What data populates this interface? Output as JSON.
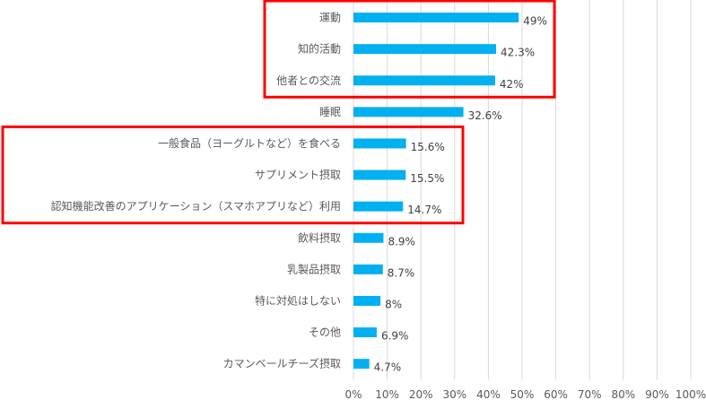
{
  "chart_data": {
    "type": "bar",
    "orientation": "horizontal",
    "categories": [
      "運動",
      "知的活動",
      "他者との交流",
      "睡眠",
      "一般食品（ヨーグルトなど）を食べる",
      "サプリメント摂取",
      "認知機能改善のアプリケーション（スマホアプリなど）利用",
      "飲料摂取",
      "乳製品摂取",
      "特に対処はしない",
      "その他",
      "カマンベールチーズ摂取"
    ],
    "values": [
      49,
      42.3,
      42,
      32.6,
      15.6,
      15.5,
      14.7,
      8.9,
      8.7,
      8,
      6.9,
      4.7
    ],
    "data_labels": [
      "49%",
      "42.3%",
      "42%",
      "32.6%",
      "15.6%",
      "15.5%",
      "14.7%",
      "8.9%",
      "8.7%",
      "8%",
      "6.9%",
      "4.7%"
    ],
    "x_ticks": [
      "0%",
      "10%",
      "20%",
      "30%",
      "40%",
      "50%",
      "60%",
      "70%",
      "80%",
      "90%",
      "100%"
    ],
    "xlim": [
      0,
      100
    ],
    "title": "",
    "xlabel": "",
    "ylabel": "",
    "grid": "vertical",
    "legend": "none",
    "highlight_groups": [
      [
        0,
        2
      ],
      [
        4,
        6
      ]
    ],
    "colors": {
      "bar": "#00B0F0",
      "highlight": "#FF0000",
      "grid": "#D9D9D9",
      "text": "#595959",
      "label": "#404040"
    }
  }
}
